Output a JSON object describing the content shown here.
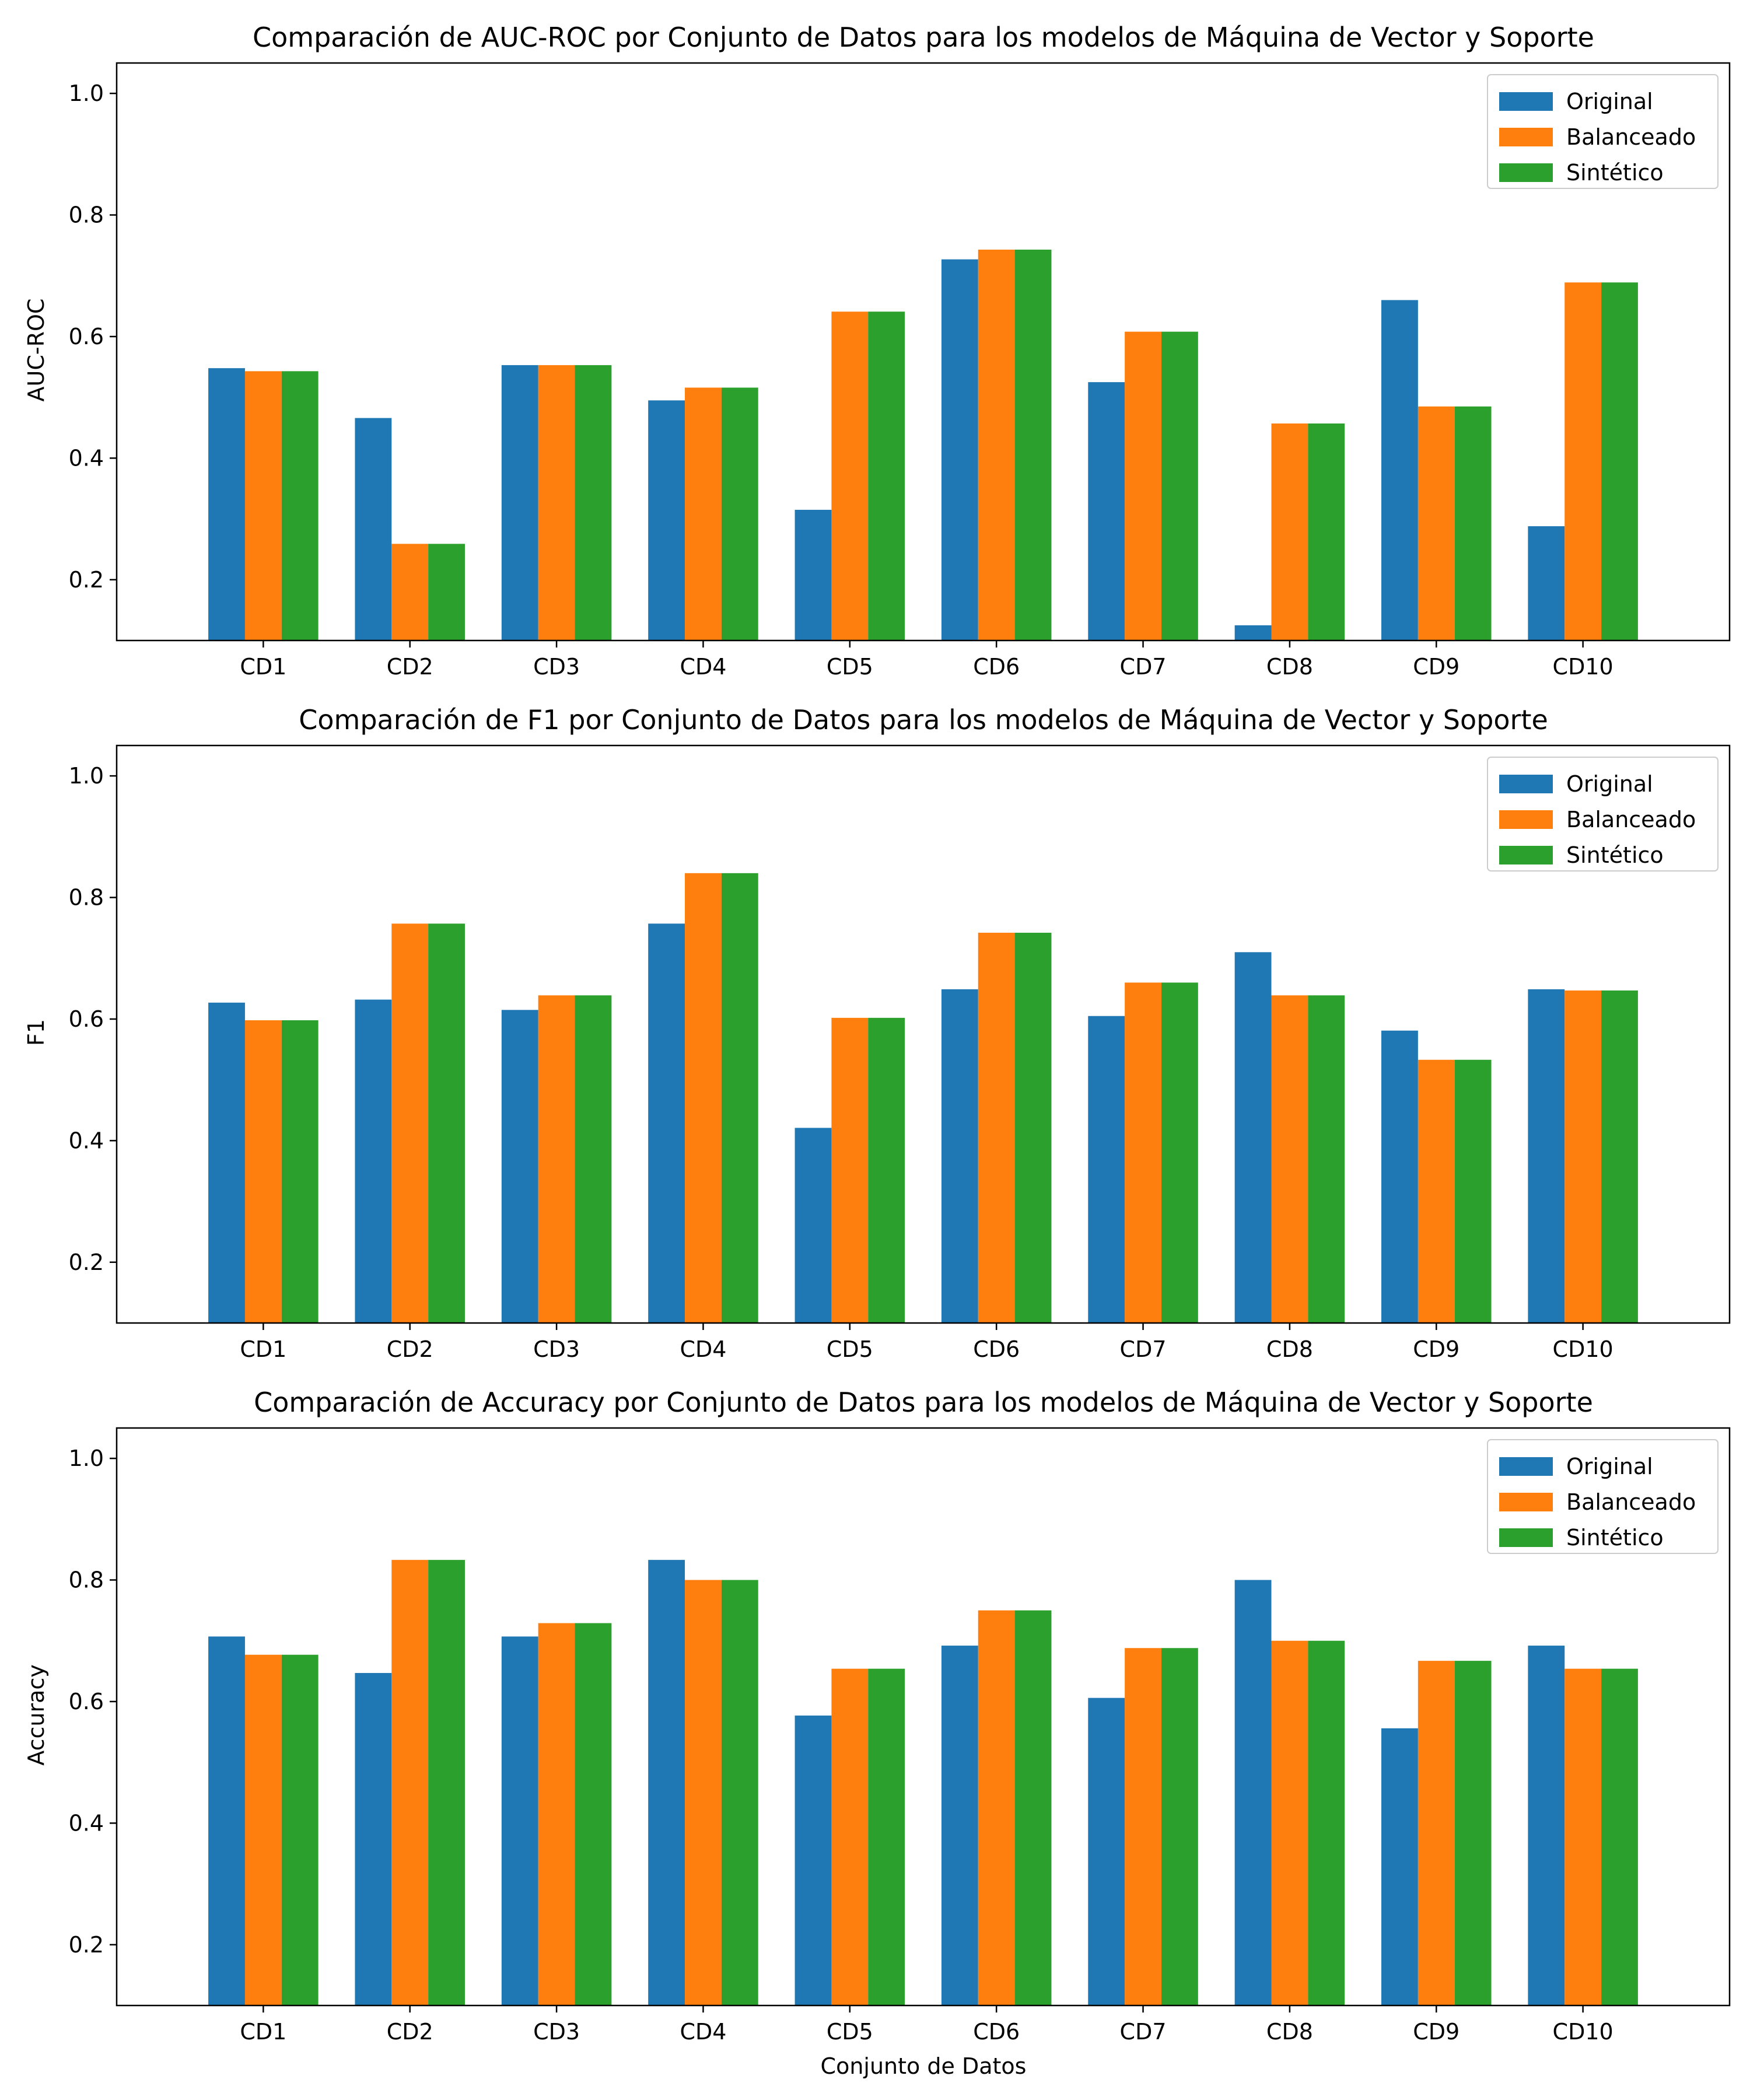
{
  "colors": {
    "original": "#1f77b4",
    "balanceado": "#ff7f0e",
    "sintetico": "#2ca02c"
  },
  "chart_data": [
    {
      "type": "bar",
      "title": "Comparación de AUC-ROC por Conjunto de Datos para los modelos de Máquina de Vector y Soporte",
      "xlabel": "",
      "ylabel": "AUC-ROC",
      "ylim": [
        0.1,
        1.05
      ],
      "yticks": [
        "0.2",
        "0.4",
        "0.6",
        "0.8",
        "1.0"
      ],
      "legend_position": "top-right",
      "categories": [
        "CD1",
        "CD2",
        "CD3",
        "CD4",
        "CD5",
        "CD6",
        "CD7",
        "CD8",
        "CD9",
        "CD10"
      ],
      "series": [
        {
          "name": "Original",
          "color": "#1f77b4",
          "values": [
            0.548,
            0.466,
            0.553,
            0.495,
            0.315,
            0.727,
            0.525,
            0.125,
            0.66,
            0.288
          ]
        },
        {
          "name": "Balanceado",
          "color": "#ff7f0e",
          "values": [
            0.543,
            0.259,
            0.553,
            0.516,
            0.641,
            0.743,
            0.608,
            0.457,
            0.485,
            0.689
          ]
        },
        {
          "name": "Sintético",
          "color": "#2ca02c",
          "values": [
            0.543,
            0.259,
            0.553,
            0.516,
            0.641,
            0.743,
            0.608,
            0.457,
            0.485,
            0.689
          ]
        }
      ]
    },
    {
      "type": "bar",
      "title": "Comparación de F1 por Conjunto de Datos para los modelos de Máquina de Vector y Soporte",
      "xlabel": "",
      "ylabel": "F1",
      "ylim": [
        0.1,
        1.05
      ],
      "yticks": [
        "0.2",
        "0.4",
        "0.6",
        "0.8",
        "1.0"
      ],
      "legend_position": "top-right",
      "categories": [
        "CD1",
        "CD2",
        "CD3",
        "CD4",
        "CD5",
        "CD6",
        "CD7",
        "CD8",
        "CD9",
        "CD10"
      ],
      "series": [
        {
          "name": "Original",
          "color": "#1f77b4",
          "values": [
            0.627,
            0.632,
            0.615,
            0.757,
            0.421,
            0.649,
            0.605,
            0.71,
            0.581,
            0.649
          ]
        },
        {
          "name": "Balanceado",
          "color": "#ff7f0e",
          "values": [
            0.598,
            0.757,
            0.639,
            0.84,
            0.602,
            0.742,
            0.66,
            0.639,
            0.533,
            0.647
          ]
        },
        {
          "name": "Sintético",
          "color": "#2ca02c",
          "values": [
            0.598,
            0.757,
            0.639,
            0.84,
            0.602,
            0.742,
            0.66,
            0.639,
            0.533,
            0.647
          ]
        }
      ]
    },
    {
      "type": "bar",
      "title": "Comparación de Accuracy por Conjunto de Datos para los modelos de Máquina de Vector y Soporte",
      "xlabel": "Conjunto de Datos",
      "ylabel": "Accuracy",
      "ylim": [
        0.1,
        1.05
      ],
      "yticks": [
        "0.2",
        "0.4",
        "0.6",
        "0.8",
        "1.0"
      ],
      "legend_position": "top-right",
      "categories": [
        "CD1",
        "CD2",
        "CD3",
        "CD4",
        "CD5",
        "CD6",
        "CD7",
        "CD8",
        "CD9",
        "CD10"
      ],
      "series": [
        {
          "name": "Original",
          "color": "#1f77b4",
          "values": [
            0.707,
            0.647,
            0.707,
            0.833,
            0.577,
            0.692,
            0.606,
            0.8,
            0.556,
            0.692
          ]
        },
        {
          "name": "Balanceado",
          "color": "#ff7f0e",
          "values": [
            0.677,
            0.833,
            0.729,
            0.8,
            0.654,
            0.75,
            0.688,
            0.7,
            0.667,
            0.654
          ]
        },
        {
          "name": "Sintético",
          "color": "#2ca02c",
          "values": [
            0.677,
            0.833,
            0.729,
            0.8,
            0.654,
            0.75,
            0.688,
            0.7,
            0.667,
            0.654
          ]
        }
      ]
    }
  ]
}
